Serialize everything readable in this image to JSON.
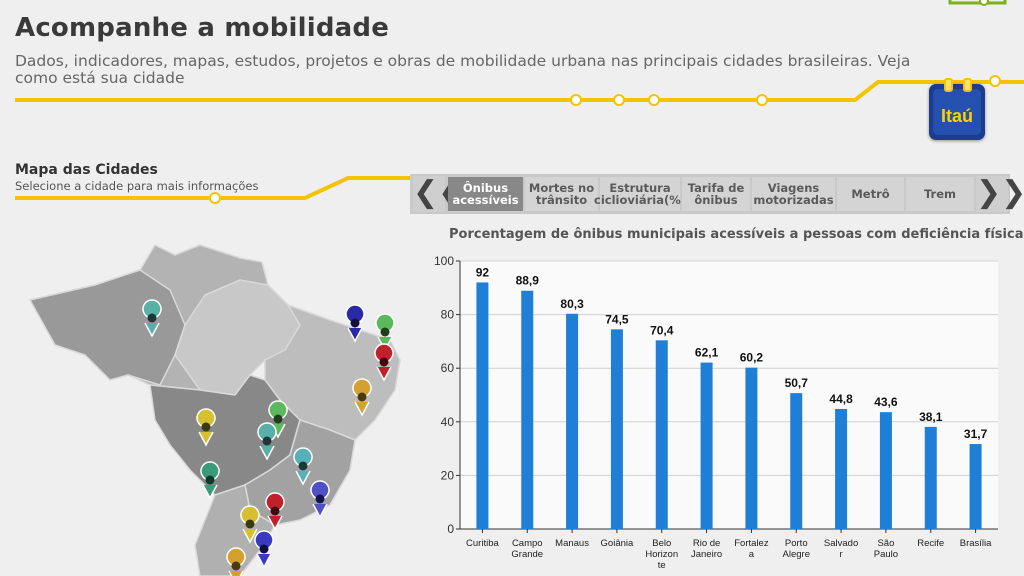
{
  "header": {
    "title": "Acompanhe a mobilidade",
    "subtitle": "Dados, indicadores, mapas, estudos, projetos e obras de mobilidade urbana nas principais cidades brasileiras. Veja como está sua cidade",
    "logo_text": "Itaú"
  },
  "map": {
    "title": "Mapa das Cidades",
    "subtitle": "Selecione a cidade para mais informações"
  },
  "tabs": [
    {
      "label": "Ônibus\nacessíveis",
      "active": true
    },
    {
      "label": "Mortes no\ntrânsito",
      "active": false
    },
    {
      "label": "Estrutura\nciclioviária(%)",
      "active": false
    },
    {
      "label": "Tarifa de\nônibus",
      "active": false
    },
    {
      "label": "Viagens\nmotorizadas",
      "active": false
    },
    {
      "label": "Metrô",
      "active": false
    },
    {
      "label": "Trem",
      "active": false
    }
  ],
  "nav": {
    "prev": "❮❮",
    "next": "❯❯"
  },
  "colors": {
    "accent": "#f5c400",
    "bar": "#1f7fd6",
    "tab_active": "#888888"
  },
  "chart_data": {
    "type": "bar",
    "title": "Porcentagem de ônibus municipais acessíveis a pessoas com deficiência física",
    "categories": [
      [
        "Curitiba"
      ],
      [
        "Campo",
        "Grande"
      ],
      [
        "Manaus"
      ],
      [
        "Goiânia"
      ],
      [
        "Belo",
        "Horizon",
        "te"
      ],
      [
        "Rio de",
        "Janeiro"
      ],
      [
        "Fortalez",
        "a"
      ],
      [
        "Porto",
        "Alegre"
      ],
      [
        "Salvado",
        "r"
      ],
      [
        "São",
        "Paulo"
      ],
      [
        "Recife"
      ],
      [
        "Brasília"
      ]
    ],
    "values": [
      92,
      88.9,
      80.3,
      74.5,
      70.4,
      62.1,
      60.2,
      50.7,
      44.8,
      43.6,
      38.1,
      31.7
    ],
    "value_labels": [
      "92",
      "88,9",
      "80,3",
      "74,5",
      "70,4",
      "62,1",
      "60,2",
      "50,7",
      "44,8",
      "43,6",
      "38,1",
      "31,7"
    ],
    "yticks": [
      "0",
      "20",
      "40",
      "60",
      "80",
      "100"
    ],
    "ylim": [
      0,
      100
    ],
    "grid": true
  }
}
